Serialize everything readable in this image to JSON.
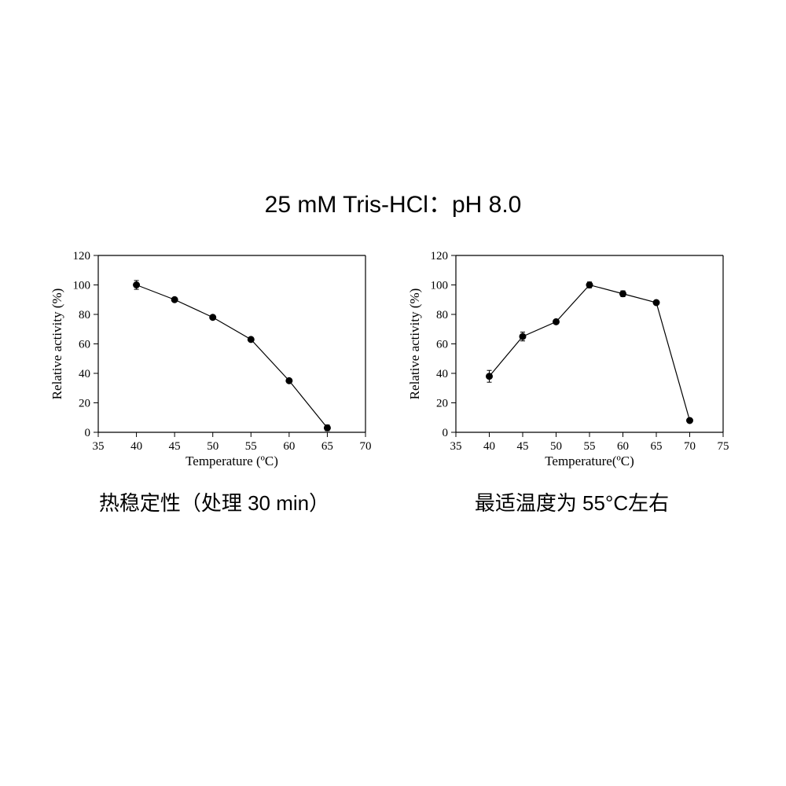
{
  "title": "25 mM Tris-HCl：pH 8.0",
  "title_fontsize": 30,
  "background_color": "#ffffff",
  "charts": [
    {
      "type": "line",
      "caption": "热稳定性（处理 30 min）",
      "xlabel": "Temperature (ºC)",
      "ylabel": "Relative activity (%)",
      "xlim": [
        35,
        70
      ],
      "ylim": [
        0,
        120
      ],
      "xticks": [
        35,
        40,
        45,
        50,
        55,
        60,
        65,
        70
      ],
      "yticks": [
        0,
        20,
        40,
        60,
        80,
        100,
        120
      ],
      "line_color": "#000000",
      "marker_color": "#000000",
      "marker_size": 4,
      "line_width": 1.2,
      "axis_font_family": "Times New Roman",
      "label_fontsize": 17,
      "tick_fontsize": 15,
      "data": {
        "x": [
          40,
          45,
          50,
          55,
          60,
          65
        ],
        "y": [
          100,
          90,
          78,
          63,
          35,
          3
        ],
        "yerr": [
          3,
          1,
          1,
          1,
          1,
          2
        ]
      }
    },
    {
      "type": "line",
      "caption": "最适温度为 55°C左右",
      "xlabel": "Temperature(ºC)",
      "ylabel": "Relative activity (%)",
      "xlim": [
        35,
        75
      ],
      "ylim": [
        0,
        120
      ],
      "xticks": [
        35,
        40,
        45,
        50,
        55,
        60,
        65,
        70,
        75
      ],
      "yticks": [
        0,
        20,
        40,
        60,
        80,
        100,
        120
      ],
      "line_color": "#000000",
      "marker_color": "#000000",
      "marker_size": 4,
      "line_width": 1.2,
      "axis_font_family": "Times New Roman",
      "label_fontsize": 17,
      "tick_fontsize": 15,
      "data": {
        "x": [
          40,
          45,
          50,
          55,
          60,
          65,
          70
        ],
        "y": [
          38,
          65,
          75,
          100,
          94,
          88,
          8
        ],
        "yerr": [
          4,
          3,
          1,
          2,
          2,
          1,
          1
        ]
      }
    }
  ]
}
